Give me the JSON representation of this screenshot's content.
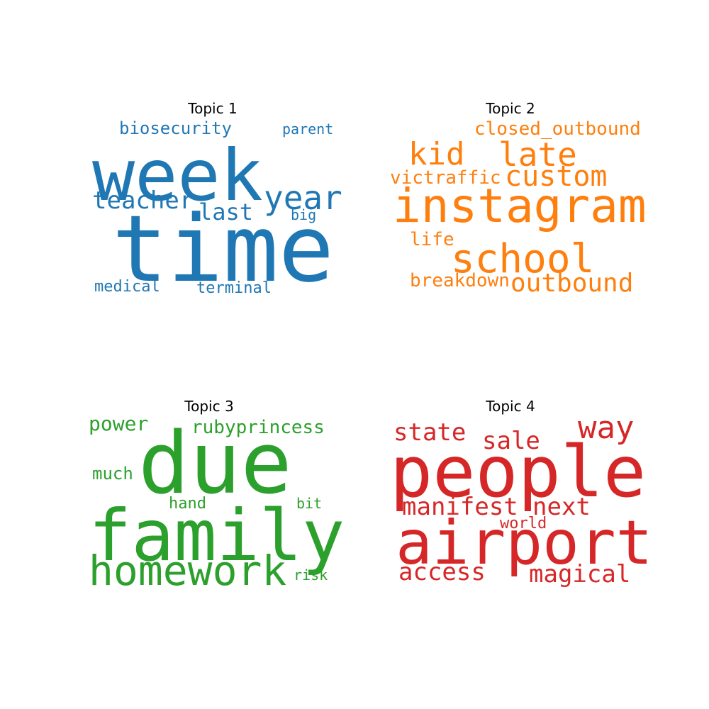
{
  "chart_data": [
    {
      "type": "wordcloud",
      "title": "Topic 1",
      "color": "#1f77b4",
      "words": [
        {
          "text": "time",
          "weight": 130
        },
        {
          "text": "week",
          "weight": 100
        },
        {
          "text": "year",
          "weight": 46
        },
        {
          "text": "teacher",
          "weight": 34
        },
        {
          "text": "last",
          "weight": 32
        },
        {
          "text": "biosecurity",
          "weight": 24
        },
        {
          "text": "parent",
          "weight": 20
        },
        {
          "text": "medical",
          "weight": 22
        },
        {
          "text": "terminal",
          "weight": 22
        },
        {
          "text": "big",
          "weight": 20
        }
      ]
    },
    {
      "type": "wordcloud",
      "title": "Topic 2",
      "color": "#ff7f0e",
      "words": [
        {
          "text": "instagram",
          "weight": 66
        },
        {
          "text": "school",
          "weight": 56
        },
        {
          "text": "late",
          "weight": 46
        },
        {
          "text": "kid",
          "weight": 44
        },
        {
          "text": "custom",
          "weight": 40
        },
        {
          "text": "outbound",
          "weight": 36
        },
        {
          "text": "closed_outbound",
          "weight": 26
        },
        {
          "text": "victraffic",
          "weight": 26
        },
        {
          "text": "breakdown",
          "weight": 26
        },
        {
          "text": "life",
          "weight": 26
        }
      ]
    },
    {
      "type": "wordcloud",
      "title": "Topic 3",
      "color": "#2ca02c",
      "words": [
        {
          "text": "due",
          "weight": 120
        },
        {
          "text": "family",
          "weight": 100
        },
        {
          "text": "homework",
          "weight": 58
        },
        {
          "text": "rubyprincess",
          "weight": 26
        },
        {
          "text": "power",
          "weight": 28
        },
        {
          "text": "much",
          "weight": 24
        },
        {
          "text": "hand",
          "weight": 22
        },
        {
          "text": "bit",
          "weight": 20
        },
        {
          "text": "risk",
          "weight": 20
        }
      ]
    },
    {
      "type": "wordcloud",
      "title": "Topic 4",
      "color": "#d62728",
      "words": [
        {
          "text": "people",
          "weight": 100
        },
        {
          "text": "airport",
          "weight": 86
        },
        {
          "text": "way",
          "weight": 44
        },
        {
          "text": "state",
          "weight": 34
        },
        {
          "text": "sale",
          "weight": 34
        },
        {
          "text": "manifest",
          "weight": 34
        },
        {
          "text": "next",
          "weight": 34
        },
        {
          "text": "access",
          "weight": 34
        },
        {
          "text": "magical",
          "weight": 34
        },
        {
          "text": "world",
          "weight": 22
        }
      ]
    }
  ]
}
